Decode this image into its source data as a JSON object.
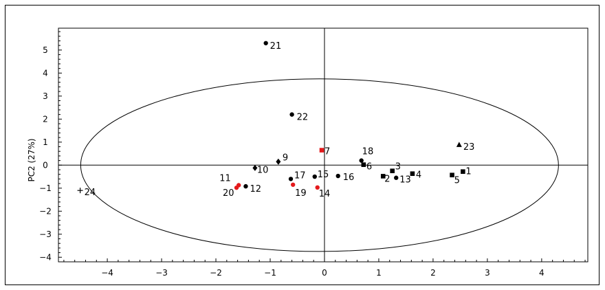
{
  "chart_data": {
    "type": "scatter",
    "title": "",
    "xlabel": "",
    "ylabel": "PC2 (27%)",
    "xlim": [
      -4.9,
      4.85
    ],
    "ylim": [
      -4.2,
      5.95
    ],
    "x_ticks": [
      -4,
      -3,
      -2,
      -1,
      0,
      1,
      2,
      3,
      4
    ],
    "y_ticks": [
      -4,
      -3,
      -2,
      -1,
      0,
      1,
      2,
      3,
      4,
      5
    ],
    "x_tick_labels": [
      "−4",
      "−3",
      "−2",
      "−1",
      "0",
      "1",
      "2",
      "3",
      "4"
    ],
    "y_tick_labels": [
      "−4",
      "−3",
      "−2",
      "−1",
      "0",
      "1",
      "2",
      "3",
      "4",
      "5"
    ],
    "grid": false,
    "ellipse": {
      "cx": -0.09,
      "cy": 0,
      "rx": 4.4,
      "ry": 3.75
    },
    "points": [
      {
        "label": "1",
        "x": 2.55,
        "y": -0.28,
        "marker": "square",
        "color": "#000000"
      },
      {
        "label": "2",
        "x": 1.08,
        "y": -0.48,
        "marker": "square",
        "color": "#000000"
      },
      {
        "label": "3",
        "x": 1.25,
        "y": -0.25,
        "marker": "square",
        "color": "#000000"
      },
      {
        "label": "4",
        "x": 1.62,
        "y": -0.37,
        "marker": "square",
        "color": "#000000"
      },
      {
        "label": "5",
        "x": 2.35,
        "y": -0.43,
        "marker": "square",
        "color": "#000000"
      },
      {
        "label": "6",
        "x": 0.72,
        "y": 0.02,
        "marker": "square",
        "color": "#000000"
      },
      {
        "label": "7",
        "x": -0.05,
        "y": 0.65,
        "marker": "square",
        "color": "#e41a1c"
      },
      {
        "label": "9",
        "x": -0.85,
        "y": 0.15,
        "marker": "diamond",
        "color": "#000000"
      },
      {
        "label": "10",
        "x": -1.28,
        "y": -0.12,
        "marker": "diamond",
        "color": "#000000"
      },
      {
        "label": "11",
        "x": -1.58,
        "y": -0.87,
        "marker": "circle",
        "color": "#e41a1c"
      },
      {
        "label": "12",
        "x": -1.45,
        "y": -0.92,
        "marker": "circle",
        "color": "#000000"
      },
      {
        "label": "13",
        "x": 1.32,
        "y": -0.55,
        "marker": "circle",
        "color": "#000000"
      },
      {
        "label": "14",
        "x": -0.13,
        "y": -0.97,
        "marker": "circle",
        "color": "#e41a1c"
      },
      {
        "label": "15",
        "x": -0.18,
        "y": -0.5,
        "marker": "circle",
        "color": "#000000"
      },
      {
        "label": "16",
        "x": 0.25,
        "y": -0.47,
        "marker": "circle",
        "color": "#000000"
      },
      {
        "label": "17",
        "x": -0.62,
        "y": -0.6,
        "marker": "circle",
        "color": "#000000"
      },
      {
        "label": "18",
        "x": 0.68,
        "y": 0.2,
        "marker": "circle",
        "color": "#000000"
      },
      {
        "label": "19",
        "x": -0.58,
        "y": -0.85,
        "marker": "circle",
        "color": "#e41a1c"
      },
      {
        "label": "20",
        "x": -1.62,
        "y": -0.98,
        "marker": "circle",
        "color": "#e41a1c"
      },
      {
        "label": "21",
        "x": -1.08,
        "y": 5.3,
        "marker": "circle",
        "color": "#000000"
      },
      {
        "label": "22",
        "x": -0.6,
        "y": 2.2,
        "marker": "circle",
        "color": "#000000"
      },
      {
        "label": "23",
        "x": 2.48,
        "y": 0.88,
        "marker": "triangle",
        "color": "#000000"
      },
      {
        "label": "24",
        "x": -4.5,
        "y": -1.1,
        "marker": "plus",
        "color": "#000000"
      }
    ]
  }
}
